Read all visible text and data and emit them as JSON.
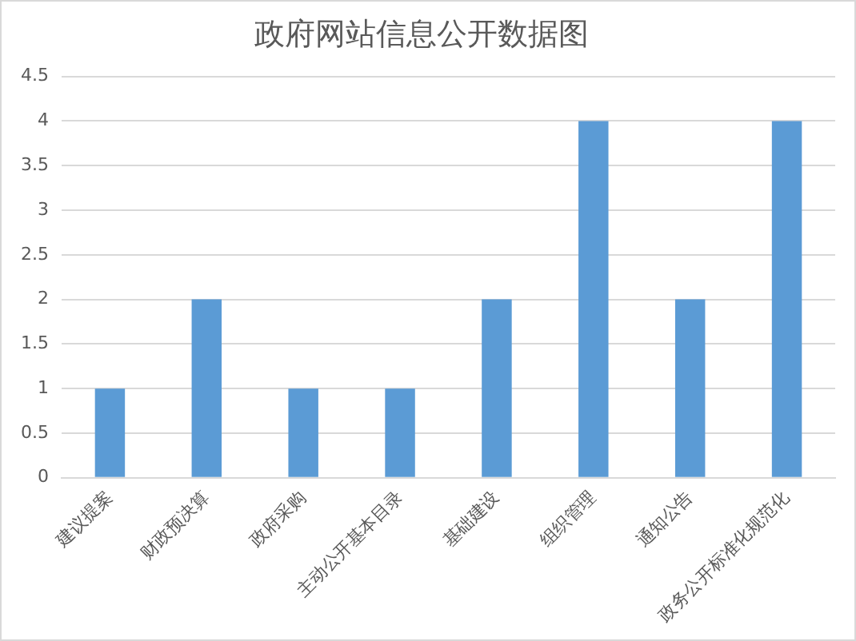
{
  "chart_data": {
    "type": "bar",
    "title": "政府网站信息公开数据图",
    "categories": [
      "建议提案",
      "财政预决算",
      "政府采购",
      "主动公开基本目录",
      "基础建设",
      "组织管理",
      "通知公告",
      "政务公开标准化规范化"
    ],
    "values": [
      1,
      2,
      1,
      1,
      2,
      4,
      2,
      4
    ],
    "color": "#5b9bd5",
    "ylim": [
      0,
      4.5
    ],
    "yticks": [
      0,
      0.5,
      1,
      1.5,
      2,
      2.5,
      3,
      3.5,
      4,
      4.5
    ],
    "grid": "y"
  }
}
